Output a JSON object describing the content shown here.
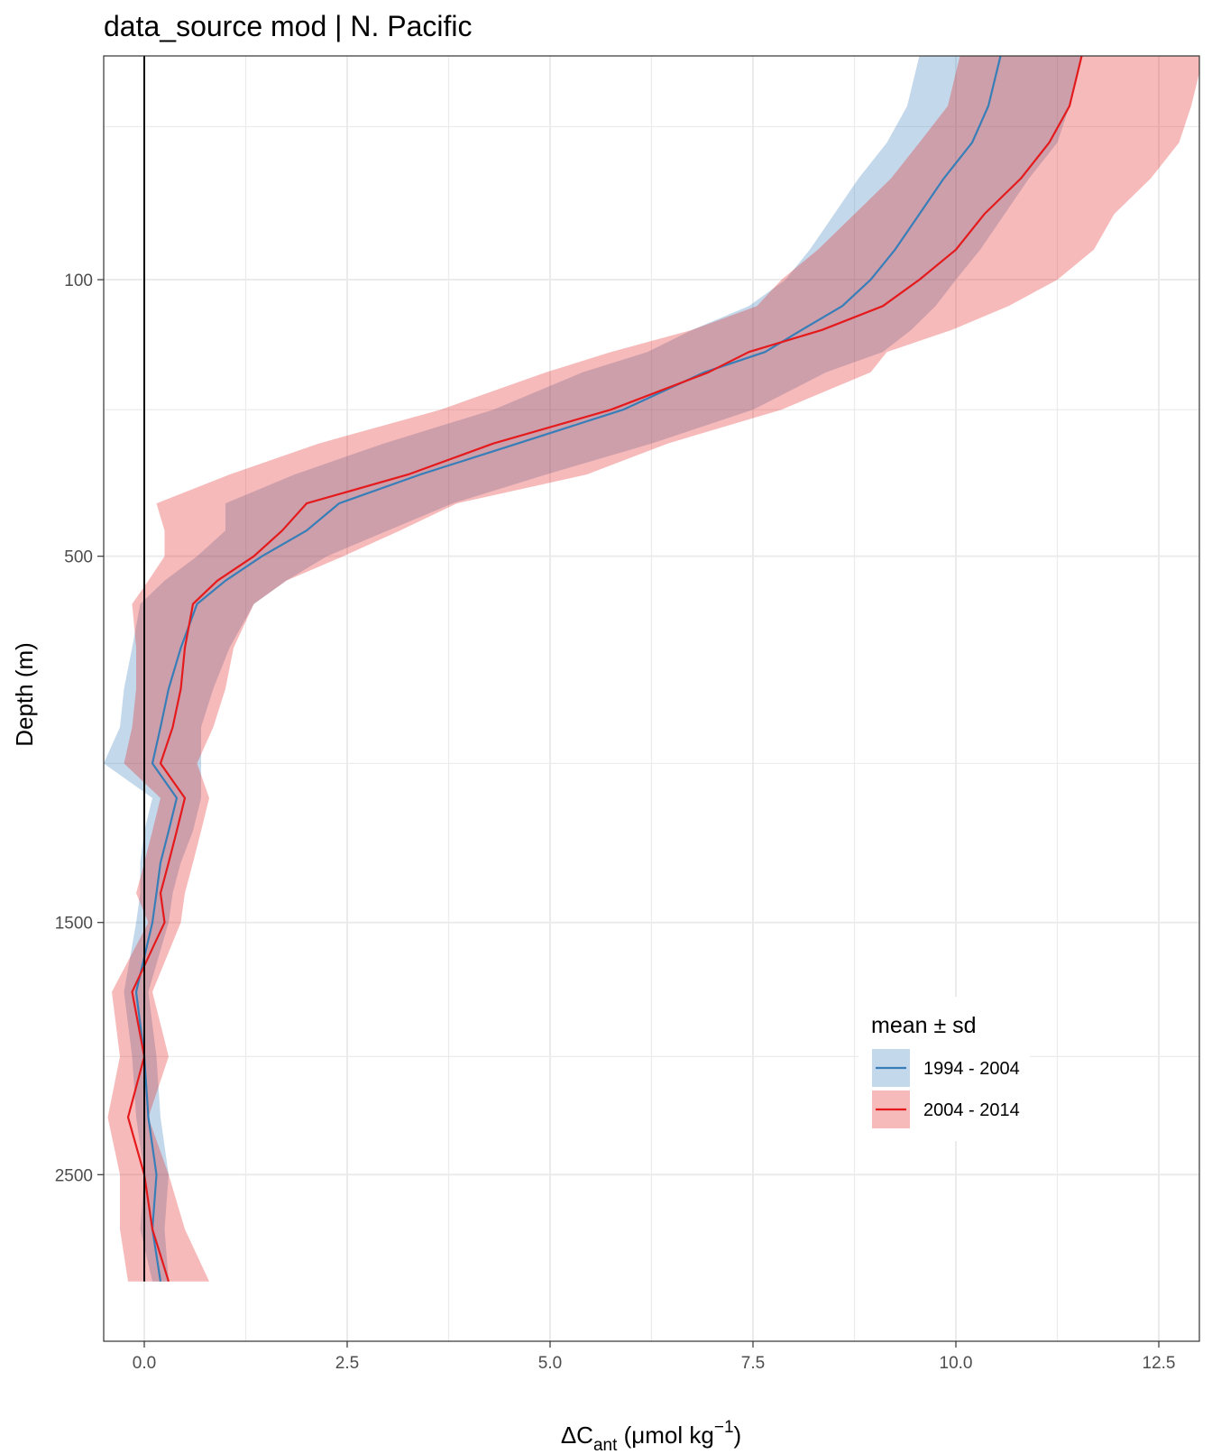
{
  "chart_data": {
    "type": "line",
    "title": "data_source mod | N. Pacific",
    "xlabel": {
      "main": "ΔC",
      "sub": "ant",
      "unit_pre": " (μmol kg",
      "sup": "−1",
      "unit_post": ")"
    },
    "ylabel": "Depth (m)",
    "xlim": [
      -0.5,
      13.0
    ],
    "x_ticks": [
      0.0,
      2.5,
      5.0,
      7.5,
      10.0,
      12.5
    ],
    "x_tick_labels": [
      "0.0",
      "2.5",
      "5.0",
      "7.5",
      "10.0",
      "12.5"
    ],
    "y_scale": "sqrt-reversed",
    "ylim": [
      0,
      3300
    ],
    "y_ticks": [
      100,
      500,
      1500,
      2500
    ],
    "y_tick_labels": [
      "100",
      "500",
      "1500",
      "2500"
    ],
    "y_minor": [
      10,
      250,
      1000,
      2000
    ],
    "grid": true,
    "legend": {
      "title": "mean ± sd",
      "position": "bottom-right"
    },
    "series": [
      {
        "name": "1994 - 2004",
        "color": "#377eb8",
        "depth": [
          0,
          5,
          15,
          30,
          50,
          75,
          100,
          125,
          150,
          175,
          200,
          250,
          300,
          350,
          400,
          450,
          500,
          550,
          600,
          700,
          800,
          900,
          1000,
          1100,
          1200,
          1300,
          1400,
          1500,
          1750,
          2000,
          2250,
          2500,
          2750,
          3000
        ],
        "mean": [
          10.55,
          10.4,
          10.2,
          9.85,
          9.55,
          9.25,
          8.95,
          8.6,
          8.1,
          7.65,
          6.9,
          5.9,
          4.6,
          3.4,
          2.4,
          2.0,
          1.45,
          1.0,
          0.65,
          0.45,
          0.3,
          0.2,
          0.1,
          0.4,
          0.3,
          0.2,
          0.15,
          0.1,
          -0.1,
          0.0,
          0.05,
          0.15,
          0.1,
          0.2
        ],
        "sd": [
          1.0,
          1.0,
          1.05,
          1.05,
          1.05,
          1.05,
          1.05,
          1.15,
          1.35,
          1.45,
          1.5,
          1.6,
          1.65,
          1.55,
          1.4,
          1.0,
          0.8,
          0.75,
          0.7,
          0.6,
          0.55,
          0.5,
          0.6,
          0.3,
          0.3,
          0.25,
          0.2,
          0.2,
          0.15,
          0.15,
          0.15,
          0.15,
          0.15,
          0.1
        ]
      },
      {
        "name": "2004 - 2014",
        "color": "#e41a1c",
        "depth": [
          0,
          5,
          15,
          30,
          50,
          75,
          100,
          125,
          150,
          175,
          200,
          250,
          300,
          350,
          400,
          450,
          500,
          550,
          600,
          700,
          800,
          900,
          1000,
          1100,
          1200,
          1300,
          1400,
          1500,
          1750,
          2000,
          2250,
          2500,
          2750,
          3000
        ],
        "mean": [
          11.55,
          11.4,
          11.15,
          10.8,
          10.35,
          10.0,
          9.55,
          9.1,
          8.35,
          7.45,
          6.95,
          5.75,
          4.3,
          3.25,
          2.0,
          1.7,
          1.35,
          0.9,
          0.6,
          0.5,
          0.45,
          0.35,
          0.2,
          0.5,
          0.4,
          0.3,
          0.2,
          0.25,
          -0.15,
          0.0,
          -0.2,
          0.0,
          0.1,
          0.3
        ],
        "sd": [
          1.5,
          1.5,
          1.6,
          1.6,
          1.6,
          1.7,
          1.7,
          1.55,
          1.6,
          1.7,
          2.0,
          2.1,
          2.15,
          2.2,
          1.85,
          1.45,
          1.1,
          0.85,
          0.75,
          0.6,
          0.55,
          0.5,
          0.45,
          0.3,
          0.3,
          0.3,
          0.3,
          0.2,
          0.25,
          0.3,
          0.25,
          0.3,
          0.4,
          0.5
        ]
      }
    ]
  }
}
